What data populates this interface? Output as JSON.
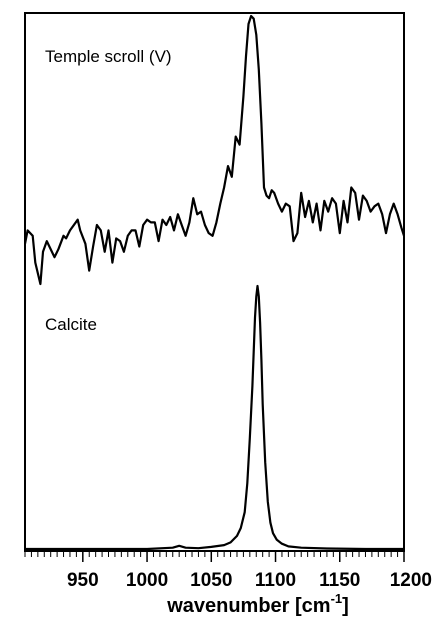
{
  "chart_data": {
    "type": "line",
    "title": "",
    "xlabel": "wavenumber [cm",
    "xlabel_superscript": "-1",
    "xlabel_suffix": "]",
    "ylabel": "",
    "xlim": [
      905,
      1200
    ],
    "x_ticks": [
      950,
      1000,
      1050,
      1100,
      1150,
      1200
    ],
    "x_tick_labels": [
      "950",
      "1000",
      "1050",
      "1100",
      "1150",
      "1200"
    ],
    "minor_tick_step": 5,
    "grid": false,
    "legend": "none",
    "line_color": "#000000",
    "panels": [
      {
        "label": "Temple scroll (V)",
        "ylim": [
          0,
          1
        ],
        "x": [
          905,
          907,
          911,
          913,
          917,
          919,
          922,
          928,
          931,
          935,
          937,
          940,
          946,
          948,
          952,
          955,
          958,
          961,
          964,
          967,
          970,
          973,
          976,
          979,
          982,
          985,
          988,
          991,
          994,
          997,
          1000,
          1003,
          1006,
          1009,
          1012,
          1015,
          1018,
          1021,
          1024,
          1027,
          1030,
          1033,
          1036,
          1039,
          1042,
          1045,
          1048,
          1051,
          1054,
          1057,
          1060,
          1063,
          1066,
          1069,
          1072,
          1075,
          1077,
          1079,
          1081,
          1083,
          1085,
          1087,
          1089,
          1091,
          1093,
          1095,
          1097,
          1099,
          1102,
          1105,
          1108,
          1111,
          1114,
          1117,
          1120,
          1123,
          1126,
          1129,
          1132,
          1135,
          1138,
          1141,
          1144,
          1147,
          1150,
          1153,
          1156,
          1159,
          1162,
          1165,
          1168,
          1171,
          1174,
          1177,
          1180,
          1183,
          1186,
          1189,
          1192,
          1195,
          1198,
          1200
        ],
        "y": [
          0.15,
          0.2,
          0.18,
          0.08,
          0.0,
          0.12,
          0.16,
          0.1,
          0.13,
          0.18,
          0.17,
          0.2,
          0.24,
          0.2,
          0.15,
          0.05,
          0.14,
          0.22,
          0.2,
          0.12,
          0.2,
          0.08,
          0.17,
          0.16,
          0.12,
          0.18,
          0.2,
          0.2,
          0.14,
          0.22,
          0.24,
          0.23,
          0.23,
          0.16,
          0.24,
          0.22,
          0.25,
          0.2,
          0.26,
          0.22,
          0.18,
          0.23,
          0.32,
          0.26,
          0.27,
          0.22,
          0.19,
          0.18,
          0.23,
          0.3,
          0.36,
          0.44,
          0.4,
          0.55,
          0.52,
          0.7,
          0.85,
          0.97,
          1.0,
          0.99,
          0.93,
          0.8,
          0.6,
          0.36,
          0.33,
          0.32,
          0.35,
          0.34,
          0.3,
          0.27,
          0.3,
          0.29,
          0.16,
          0.19,
          0.34,
          0.25,
          0.31,
          0.23,
          0.3,
          0.2,
          0.31,
          0.27,
          0.32,
          0.3,
          0.19,
          0.31,
          0.23,
          0.36,
          0.34,
          0.24,
          0.33,
          0.31,
          0.27,
          0.29,
          0.3,
          0.26,
          0.19,
          0.26,
          0.3,
          0.26,
          0.21,
          0.18
        ]
      },
      {
        "label": "Calcite",
        "ylim": [
          0,
          1
        ],
        "x": [
          905,
          960,
          1000,
          1020,
          1025,
          1030,
          1040,
          1050,
          1060,
          1065,
          1070,
          1073,
          1076,
          1078,
          1080,
          1082,
          1083,
          1084,
          1085,
          1086,
          1087,
          1088,
          1089,
          1090,
          1092,
          1094,
          1096,
          1098,
          1101,
          1105,
          1110,
          1120,
          1140,
          1170,
          1200
        ],
        "y": [
          0.0,
          0.0,
          0.0,
          0.005,
          0.012,
          0.005,
          0.003,
          0.008,
          0.015,
          0.025,
          0.05,
          0.08,
          0.14,
          0.25,
          0.42,
          0.62,
          0.75,
          0.88,
          0.96,
          1.0,
          0.96,
          0.86,
          0.72,
          0.55,
          0.33,
          0.18,
          0.1,
          0.06,
          0.035,
          0.02,
          0.01,
          0.005,
          0.002,
          0.0,
          0.0
        ]
      }
    ]
  }
}
